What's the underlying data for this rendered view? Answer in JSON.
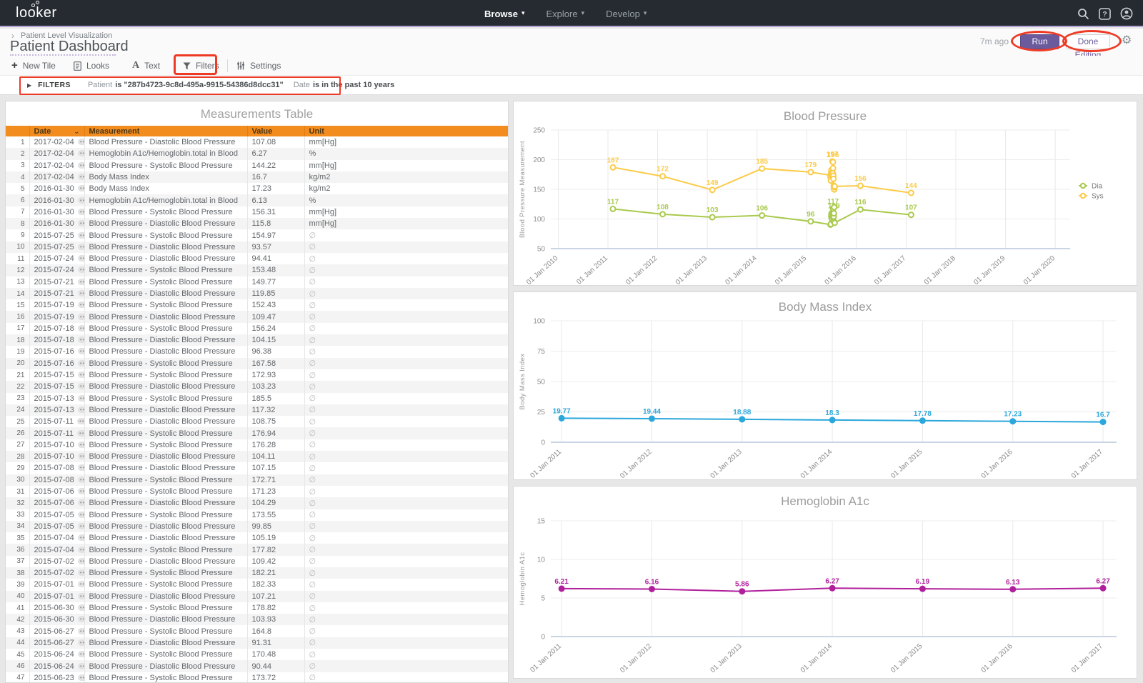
{
  "nav": {
    "logo": "looker",
    "menus": [
      {
        "label": "Browse"
      },
      {
        "label": "Explore"
      },
      {
        "label": "Develop"
      }
    ]
  },
  "header": {
    "breadcrumb": "Patient Level Visualization",
    "title": "Patient Dashboard",
    "last_run": "7m ago",
    "run_label": "Run",
    "done_label": "Done Editing"
  },
  "toolbar": {
    "items": [
      {
        "label": "New Tile"
      },
      {
        "label": "Looks"
      },
      {
        "label": "Text"
      },
      {
        "label": "Filters"
      },
      {
        "label": "Settings"
      }
    ]
  },
  "filters_bar": {
    "label": "FILTERS",
    "filters": [
      {
        "field": "Patient",
        "condition": "is \"287b4723-9c8d-495a-9915-54386d8dcc31\""
      },
      {
        "field": "Date",
        "condition": "is in the past 10 years"
      }
    ]
  },
  "table": {
    "title": "Measurements Table",
    "columns": [
      "Date",
      "Measurement",
      "Value",
      "Unit"
    ],
    "rows": [
      [
        "2017-02-04",
        "Blood Pressure - Diastolic Blood Pressure",
        "107.08",
        "mm[Hg]"
      ],
      [
        "2017-02-04",
        "Hemoglobin A1c/Hemoglobin.total in Blood",
        "6.27",
        "%"
      ],
      [
        "2017-02-04",
        "Blood Pressure - Systolic Blood Pressure",
        "144.22",
        "mm[Hg]"
      ],
      [
        "2017-02-04",
        "Body Mass Index",
        "16.7",
        "kg/m2"
      ],
      [
        "2016-01-30",
        "Body Mass Index",
        "17.23",
        "kg/m2"
      ],
      [
        "2016-01-30",
        "Hemoglobin A1c/Hemoglobin.total in Blood",
        "6.13",
        "%"
      ],
      [
        "2016-01-30",
        "Blood Pressure - Systolic Blood Pressure",
        "156.31",
        "mm[Hg]"
      ],
      [
        "2016-01-30",
        "Blood Pressure - Diastolic Blood Pressure",
        "115.8",
        "mm[Hg]"
      ],
      [
        "2015-07-25",
        "Blood Pressure - Systolic Blood Pressure",
        "154.97",
        "∅"
      ],
      [
        "2015-07-25",
        "Blood Pressure - Diastolic Blood Pressure",
        "93.57",
        "∅"
      ],
      [
        "2015-07-24",
        "Blood Pressure - Diastolic Blood Pressure",
        "94.41",
        "∅"
      ],
      [
        "2015-07-24",
        "Blood Pressure - Systolic Blood Pressure",
        "153.48",
        "∅"
      ],
      [
        "2015-07-21",
        "Blood Pressure - Systolic Blood Pressure",
        "149.77",
        "∅"
      ],
      [
        "2015-07-21",
        "Blood Pressure - Diastolic Blood Pressure",
        "119.85",
        "∅"
      ],
      [
        "2015-07-19",
        "Blood Pressure - Systolic Blood Pressure",
        "152.43",
        "∅"
      ],
      [
        "2015-07-19",
        "Blood Pressure - Diastolic Blood Pressure",
        "109.47",
        "∅"
      ],
      [
        "2015-07-18",
        "Blood Pressure - Systolic Blood Pressure",
        "156.24",
        "∅"
      ],
      [
        "2015-07-18",
        "Blood Pressure - Diastolic Blood Pressure",
        "104.15",
        "∅"
      ],
      [
        "2015-07-16",
        "Blood Pressure - Diastolic Blood Pressure",
        "96.38",
        "∅"
      ],
      [
        "2015-07-16",
        "Blood Pressure - Systolic Blood Pressure",
        "167.58",
        "∅"
      ],
      [
        "2015-07-15",
        "Blood Pressure - Systolic Blood Pressure",
        "172.93",
        "∅"
      ],
      [
        "2015-07-15",
        "Blood Pressure - Diastolic Blood Pressure",
        "103.23",
        "∅"
      ],
      [
        "2015-07-13",
        "Blood Pressure - Systolic Blood Pressure",
        "185.5",
        "∅"
      ],
      [
        "2015-07-13",
        "Blood Pressure - Diastolic Blood Pressure",
        "117.32",
        "∅"
      ],
      [
        "2015-07-11",
        "Blood Pressure - Diastolic Blood Pressure",
        "108.75",
        "∅"
      ],
      [
        "2015-07-11",
        "Blood Pressure - Systolic Blood Pressure",
        "176.94",
        "∅"
      ],
      [
        "2015-07-10",
        "Blood Pressure - Systolic Blood Pressure",
        "176.28",
        "∅"
      ],
      [
        "2015-07-10",
        "Blood Pressure - Diastolic Blood Pressure",
        "104.11",
        "∅"
      ],
      [
        "2015-07-08",
        "Blood Pressure - Diastolic Blood Pressure",
        "107.15",
        "∅"
      ],
      [
        "2015-07-08",
        "Blood Pressure - Systolic Blood Pressure",
        "172.71",
        "∅"
      ],
      [
        "2015-07-06",
        "Blood Pressure - Systolic Blood Pressure",
        "171.23",
        "∅"
      ],
      [
        "2015-07-06",
        "Blood Pressure - Diastolic Blood Pressure",
        "104.29",
        "∅"
      ],
      [
        "2015-07-05",
        "Blood Pressure - Systolic Blood Pressure",
        "173.55",
        "∅"
      ],
      [
        "2015-07-05",
        "Blood Pressure - Diastolic Blood Pressure",
        "99.85",
        "∅"
      ],
      [
        "2015-07-04",
        "Blood Pressure - Diastolic Blood Pressure",
        "105.19",
        "∅"
      ],
      [
        "2015-07-04",
        "Blood Pressure - Systolic Blood Pressure",
        "177.82",
        "∅"
      ],
      [
        "2015-07-02",
        "Blood Pressure - Diastolic Blood Pressure",
        "109.42",
        "∅"
      ],
      [
        "2015-07-02",
        "Blood Pressure - Systolic Blood Pressure",
        "182.21",
        "∅"
      ],
      [
        "2015-07-01",
        "Blood Pressure - Systolic Blood Pressure",
        "182.33",
        "∅"
      ],
      [
        "2015-07-01",
        "Blood Pressure - Diastolic Blood Pressure",
        "107.21",
        "∅"
      ],
      [
        "2015-06-30",
        "Blood Pressure - Systolic Blood Pressure",
        "178.82",
        "∅"
      ],
      [
        "2015-06-30",
        "Blood Pressure - Diastolic Blood Pressure",
        "103.93",
        "∅"
      ],
      [
        "2015-06-27",
        "Blood Pressure - Systolic Blood Pressure",
        "164.8",
        "∅"
      ],
      [
        "2015-06-27",
        "Blood Pressure - Diastolic Blood Pressure",
        "91.31",
        "∅"
      ],
      [
        "2015-06-24",
        "Blood Pressure - Systolic Blood Pressure",
        "170.48",
        "∅"
      ],
      [
        "2015-06-24",
        "Blood Pressure - Diastolic Blood Pressure",
        "90.44",
        "∅"
      ],
      [
        "2015-06-23",
        "Blood Pressure - Systolic Blood Pressure",
        "173.72",
        "∅"
      ]
    ]
  },
  "chart_data": [
    {
      "type": "line",
      "title": "Blood Pressure",
      "ylabel": "Blood Pressure Measurement",
      "ylim": [
        50,
        250
      ],
      "yticks": [
        250,
        200,
        150,
        100,
        50
      ],
      "xlim": [
        2009.85,
        2020.3
      ],
      "xtick_values": [
        2010,
        2011,
        2012,
        2013,
        2014,
        2015,
        2016,
        2017,
        2018,
        2019,
        2020
      ],
      "xtick_labels": [
        "01 Jan 2010",
        "01 Jan 2011",
        "01 Jan 2012",
        "01 Jan 2013",
        "01 Jan 2014",
        "01 Jan 2015",
        "01 Jan 2016",
        "01 Jan 2017",
        "01 Jan 2018",
        "01 Jan 2019",
        "01 Jan 2020"
      ],
      "legend": [
        "Dia",
        "Sys"
      ],
      "series": [
        {
          "name": "Sys",
          "color": "#FBCB49",
          "marker": "open",
          "points": [
            {
              "x": 2011.1,
              "y": 187,
              "label": "187"
            },
            {
              "x": 2012.1,
              "y": 172,
              "label": "172"
            },
            {
              "x": 2013.1,
              "y": 149,
              "label": "149"
            },
            {
              "x": 2014.1,
              "y": 185,
              "label": "185"
            },
            {
              "x": 2015.08,
              "y": 179,
              "label": "179"
            },
            {
              "x": 2015.475,
              "y": 173.72
            },
            {
              "x": 2015.478,
              "y": 170.48
            },
            {
              "x": 2015.486,
              "y": 164.8
            },
            {
              "x": 2015.494,
              "y": 178.82
            },
            {
              "x": 2015.497,
              "y": 182.33
            },
            {
              "x": 2015.5,
              "y": 182.21
            },
            {
              "x": 2015.505,
              "y": 177.82
            },
            {
              "x": 2015.508,
              "y": 173.55
            },
            {
              "x": 2015.511,
              "y": 171.23
            },
            {
              "x": 2015.515,
              "y": 197,
              "label": "197"
            },
            {
              "x": 2015.516,
              "y": 172.71
            },
            {
              "x": 2015.522,
              "y": 176.28
            },
            {
              "x": 2015.525,
              "y": 176.94
            },
            {
              "x": 2015.528,
              "y": 196,
              "label": "196"
            },
            {
              "x": 2015.53,
              "y": 185.5
            },
            {
              "x": 2015.535,
              "y": 172.93
            },
            {
              "x": 2015.538,
              "y": 167.58
            },
            {
              "x": 2015.544,
              "y": 156.24
            },
            {
              "x": 2015.546,
              "y": 152.43
            },
            {
              "x": 2015.552,
              "y": 149.77
            },
            {
              "x": 2015.56,
              "y": 153.48
            },
            {
              "x": 2015.562,
              "y": 154.97
            },
            {
              "x": 2016.08,
              "y": 156,
              "label": "156"
            },
            {
              "x": 2017.1,
              "y": 144,
              "label": "144"
            }
          ]
        },
        {
          "name": "Dia",
          "color": "#A9C94D",
          "marker": "open",
          "points": [
            {
              "x": 2011.1,
              "y": 117,
              "label": "117"
            },
            {
              "x": 2012.1,
              "y": 108,
              "label": "108"
            },
            {
              "x": 2013.1,
              "y": 103,
              "label": "103"
            },
            {
              "x": 2014.1,
              "y": 106,
              "label": "106"
            },
            {
              "x": 2015.08,
              "y": 96,
              "label": "96"
            },
            {
              "x": 2015.478,
              "y": 90.44
            },
            {
              "x": 2015.486,
              "y": 91.31
            },
            {
              "x": 2015.494,
              "y": 103.93
            },
            {
              "x": 2015.497,
              "y": 107.21
            },
            {
              "x": 2015.5,
              "y": 109.42
            },
            {
              "x": 2015.505,
              "y": 105.19
            },
            {
              "x": 2015.508,
              "y": 99.85
            },
            {
              "x": 2015.511,
              "y": 104.29
            },
            {
              "x": 2015.516,
              "y": 107.15
            },
            {
              "x": 2015.522,
              "y": 104.11
            },
            {
              "x": 2015.525,
              "y": 108.75
            },
            {
              "x": 2015.53,
              "y": 117.32,
              "label": "117"
            },
            {
              "x": 2015.535,
              "y": 103.23
            },
            {
              "x": 2015.538,
              "y": 96.38
            },
            {
              "x": 2015.544,
              "y": 104.15
            },
            {
              "x": 2015.546,
              "y": 109.47,
              "label": "109"
            },
            {
              "x": 2015.552,
              "y": 119.85
            },
            {
              "x": 2015.56,
              "y": 94.41
            },
            {
              "x": 2015.562,
              "y": 93.57
            },
            {
              "x": 2016.08,
              "y": 116,
              "label": "116"
            },
            {
              "x": 2017.1,
              "y": 107,
              "label": "107"
            }
          ]
        }
      ]
    },
    {
      "type": "line",
      "title": "Body Mass Index",
      "ylabel": "Body Mass Index",
      "ylim": [
        0,
        100
      ],
      "yticks": [
        100,
        75,
        50,
        25,
        0
      ],
      "xlim": [
        2010.88,
        2017.15
      ],
      "xtick_values": [
        2011,
        2012,
        2013,
        2014,
        2015,
        2016,
        2017
      ],
      "xtick_labels": [
        "01 Jan 2011",
        "01 Jan 2012",
        "01 Jan 2013",
        "01 Jan 2014",
        "01 Jan 2015",
        "01 Jan 2016",
        "01 Jan 2017"
      ],
      "series": [
        {
          "name": "Body Mass Index",
          "color": "#2BA7DB",
          "marker": "filled",
          "points": [
            {
              "x": 2011,
              "y": 19.77,
              "label": "19.77"
            },
            {
              "x": 2012,
              "y": 19.44,
              "label": "19.44"
            },
            {
              "x": 2013,
              "y": 18.88,
              "label": "18.88"
            },
            {
              "x": 2014,
              "y": 18.3,
              "label": "18.3"
            },
            {
              "x": 2015,
              "y": 17.78,
              "label": "17.78"
            },
            {
              "x": 2016,
              "y": 17.23,
              "label": "17.23"
            },
            {
              "x": 2017,
              "y": 16.7,
              "label": "16.7"
            }
          ]
        }
      ]
    },
    {
      "type": "line",
      "title": "Hemoglobin A1c",
      "ylabel": "Hemoglobin A1c",
      "ylim": [
        0,
        15
      ],
      "yticks": [
        15,
        10,
        5,
        0
      ],
      "xlim": [
        2010.88,
        2017.15
      ],
      "xtick_values": [
        2011,
        2012,
        2013,
        2014,
        2015,
        2016,
        2017
      ],
      "xtick_labels": [
        "01 Jan 2011",
        "01 Jan 2012",
        "01 Jan 2013",
        "01 Jan 2014",
        "01 Jan 2015",
        "01 Jan 2016",
        "01 Jan 2017"
      ],
      "series": [
        {
          "name": "Hemoglobin A1c",
          "color": "#B1209C",
          "marker": "filled",
          "points": [
            {
              "x": 2011,
              "y": 6.21,
              "label": "6.21"
            },
            {
              "x": 2012,
              "y": 6.16,
              "label": "6.16"
            },
            {
              "x": 2013,
              "y": 5.86,
              "label": "5.86"
            },
            {
              "x": 2014,
              "y": 6.27,
              "label": "6.27"
            },
            {
              "x": 2015,
              "y": 6.19,
              "label": "6.19"
            },
            {
              "x": 2016,
              "y": 6.13,
              "label": "6.13"
            },
            {
              "x": 2017,
              "y": 6.27,
              "label": "6.27"
            }
          ]
        }
      ]
    }
  ]
}
